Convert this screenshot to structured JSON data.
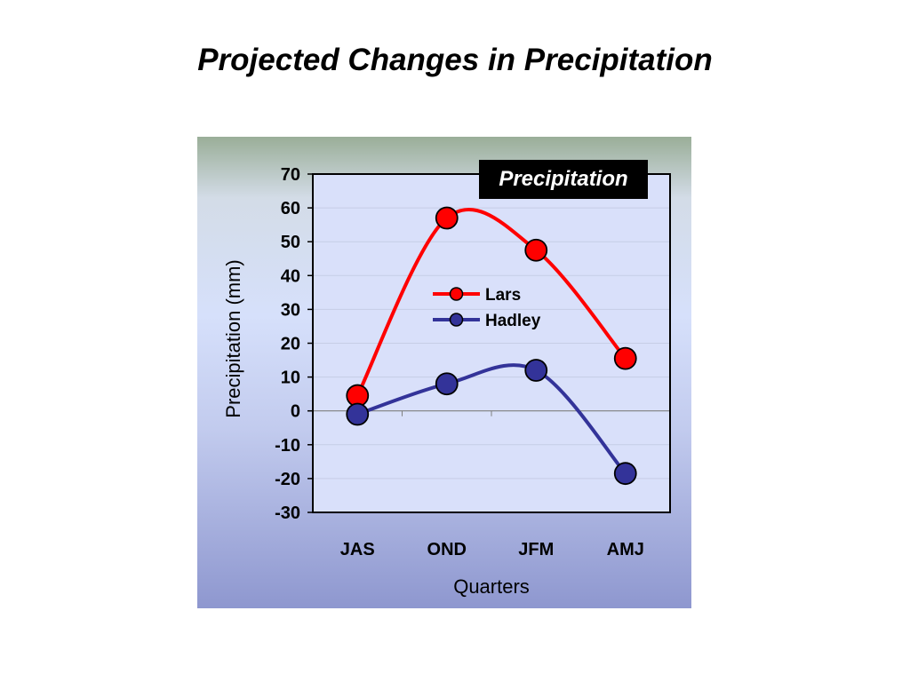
{
  "slide": {
    "title": "Projected Changes in Precipitation"
  },
  "chart_data": {
    "type": "line",
    "title": "Precipitation",
    "xlabel": "Quarters",
    "ylabel": "Precipitation (mm)",
    "categories": [
      "JAS",
      "OND",
      "JFM",
      "AMJ"
    ],
    "ylim": [
      -30,
      70
    ],
    "yticks": [
      70,
      60,
      50,
      40,
      30,
      20,
      10,
      0,
      -10,
      -20,
      -30
    ],
    "series": [
      {
        "name": "Lars",
        "values": [
          4.5,
          57,
          47.5,
          15.5
        ],
        "color": "#ff0000"
      },
      {
        "name": "Hadley",
        "values": [
          -1,
          8,
          12,
          -18.5
        ],
        "color": "#333399"
      }
    ],
    "legend": "center",
    "grid": "horizontal",
    "smooth": true
  }
}
